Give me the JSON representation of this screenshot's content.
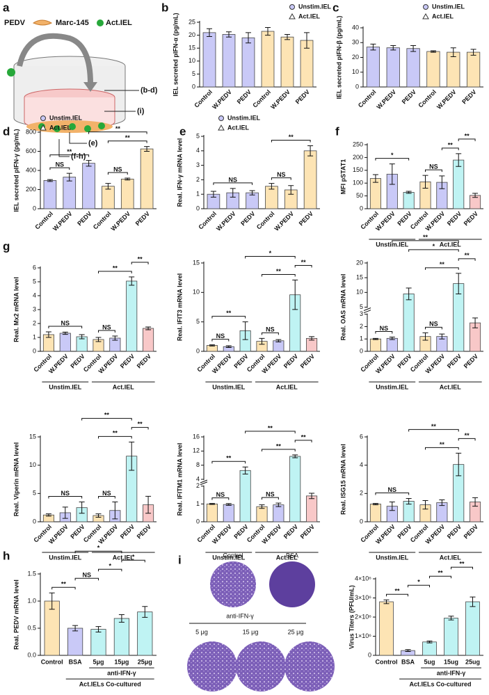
{
  "figure": {
    "a": {
      "letter": "a",
      "labels": [
        "PEDV",
        "Marc-145",
        "Act.IEL"
      ],
      "arrows": [
        "(b-d)",
        "(i)",
        "(e)",
        "(f-h)"
      ]
    },
    "plates": {
      "letter": "i",
      "top": [
        "Control",
        "BSA"
      ],
      "treatment": "anti-IFN-γ",
      "bottom": [
        "5 μg",
        "15 μg",
        "25 μg"
      ]
    }
  },
  "chart_data": [
    {
      "type": "bar",
      "panel": "b",
      "ylabel": "IEL secreted pIFN-α (pg/mL)",
      "legend": [
        "Unstim.IEL",
        "Act.IEL"
      ],
      "categories": [
        "Control",
        "W.PEDV",
        "PEDV",
        "Control",
        "W.PEDV",
        "PEDV"
      ],
      "values": [
        21,
        20.3,
        19,
        21.5,
        19.3,
        18
      ],
      "errors": [
        1.5,
        1,
        2,
        1.5,
        1,
        3
      ],
      "colors": [
        "#c9c9f7",
        "#c9c9f7",
        "#c9c9f7",
        "#fde4b4",
        "#fde4b4",
        "#fde4b4"
      ],
      "ylim": [
        0,
        25
      ],
      "yticks": [
        0,
        5,
        10,
        15,
        20,
        25
      ]
    },
    {
      "type": "bar",
      "panel": "c",
      "ylabel": "IEL secreted pIFN-β (pg/mL)",
      "legend": [
        "Unstim.IEL",
        "Act.IEL"
      ],
      "categories": [
        "Control",
        "W.PEDV",
        "PEDV",
        "Control",
        "W.PEDV",
        "PEDV"
      ],
      "values": [
        27,
        26.5,
        26,
        24,
        23.5,
        23.5
      ],
      "errors": [
        2,
        1.5,
        2,
        0.5,
        3,
        2
      ],
      "colors": [
        "#c9c9f7",
        "#c9c9f7",
        "#c9c9f7",
        "#fde4b4",
        "#fde4b4",
        "#fde4b4"
      ],
      "ylim": [
        0,
        40
      ],
      "yticks": [
        0,
        10,
        20,
        30,
        40
      ]
    },
    {
      "type": "bar",
      "panel": "d",
      "ylabel": "IEL secreted pIFN-γ (pg/mL)",
      "legend": [
        "Unstim.IEL",
        "Act.IEL"
      ],
      "categories": [
        "Control",
        "W.PEDV",
        "PEDV",
        "Control",
        "W.PEDV",
        "PEDV"
      ],
      "values": [
        295,
        330,
        475,
        235,
        310,
        625
      ],
      "errors": [
        10,
        40,
        30,
        30,
        10,
        25
      ],
      "colors": [
        "#c9c9f7",
        "#c9c9f7",
        "#c9c9f7",
        "#fde4b4",
        "#fde4b4",
        "#fde4b4"
      ],
      "ylim": [
        0,
        800
      ],
      "yticks": [
        0,
        200,
        400,
        600,
        800
      ],
      "comparisons": [
        {
          "from": 0,
          "to": 1,
          "label": "NS"
        },
        {
          "from": 0,
          "to": 2,
          "label": "**"
        },
        {
          "from": 3,
          "to": 4,
          "label": "NS"
        },
        {
          "from": 3,
          "to": 5,
          "label": "**"
        },
        {
          "from": 2,
          "to": 5,
          "label": "**"
        }
      ]
    },
    {
      "type": "bar",
      "panel": "e",
      "ylabel": "Real. IFN-γ mRNA level",
      "legend": [
        "Unstim.IEL",
        "Act.IEL"
      ],
      "categories": [
        "Control",
        "W.PEDV",
        "PEDV",
        "Control",
        "W.PEDV",
        "PEDV"
      ],
      "values": [
        1.0,
        1.1,
        1.1,
        1.55,
        1.3,
        4.0
      ],
      "errors": [
        0.2,
        0.3,
        0.15,
        0.2,
        0.3,
        0.35
      ],
      "colors": [
        "#c9c9f7",
        "#c9c9f7",
        "#c9c9f7",
        "#fde4b4",
        "#fde4b4",
        "#fde4b4"
      ],
      "ylim": [
        0,
        5
      ],
      "yticks": [
        0,
        1,
        2,
        3,
        4,
        5
      ],
      "comparisons": [
        {
          "from": 0,
          "to": 2,
          "label": "NS"
        },
        {
          "from": 3,
          "to": 4,
          "label": "NS"
        },
        {
          "from": 3,
          "to": 5,
          "label": "**"
        }
      ]
    },
    {
      "type": "bar",
      "panel": "f",
      "ylabel": "MFI pSTAT1",
      "categories": [
        "Control",
        "W.PEDV",
        "PEDV",
        "Control",
        "W.PEDV",
        "PEDV",
        "PEDV"
      ],
      "values": [
        118,
        135,
        64,
        105,
        103,
        190,
        52
      ],
      "errors": [
        15,
        40,
        4,
        25,
        25,
        25,
        8
      ],
      "colors": [
        "#fde4b4",
        "#c9c9f7",
        "#bff3f3",
        "#fde4b4",
        "#c9c9f7",
        "#bff3f3",
        "#f8c8c8"
      ],
      "ylim": [
        0,
        250
      ],
      "yticks": [
        0,
        50,
        100,
        150,
        200,
        250
      ],
      "comparisons": [
        {
          "from": 0,
          "to": 2,
          "label": "*"
        },
        {
          "from": 3,
          "to": 4,
          "label": "NS"
        },
        {
          "from": 4,
          "to": 5,
          "label": "**"
        },
        {
          "from": 5,
          "to": 6,
          "label": "**"
        }
      ],
      "group_rows": [
        [
          {
            "label": "Unstim.IEL",
            "from": 0,
            "to": 2
          },
          {
            "label": "Act.IEL",
            "from": 3,
            "to": 6
          }
        ]
      ]
    },
    {
      "type": "bar",
      "panel": "g",
      "ylabel": "Real. Mx2 mRNA level",
      "categories": [
        "Control",
        "W.PEDV",
        "PEDV",
        "Control",
        "W.PEDV",
        "PEDV",
        "PEDV"
      ],
      "values": [
        1.2,
        1.3,
        1.05,
        0.85,
        0.95,
        5.05,
        1.65
      ],
      "errors": [
        0.2,
        0.08,
        0.15,
        0.15,
        0.15,
        0.3,
        0.1
      ],
      "colors": [
        "#fde4b4",
        "#c9c9f7",
        "#bff3f3",
        "#fde4b4",
        "#c9c9f7",
        "#bff3f3",
        "#f8c8c8"
      ],
      "ylim": [
        0,
        6
      ],
      "yticks": [
        0,
        1,
        2,
        3,
        4,
        5,
        6
      ],
      "comparisons": [
        {
          "from": 0,
          "to": 2,
          "label": "NS"
        },
        {
          "from": 3,
          "to": 4,
          "label": "NS"
        },
        {
          "from": 3,
          "to": 5,
          "label": "**"
        },
        {
          "from": 5,
          "to": 6,
          "label": "**"
        }
      ],
      "group_rows": [
        [
          {
            "label": "Unstim.IEL",
            "from": 0,
            "to": 2
          },
          {
            "label": "Act.IEL",
            "from": 3,
            "to": 6
          }
        ]
      ]
    },
    {
      "type": "bar",
      "ylabel": "Real. IFIT3 mRNA level",
      "categories": [
        "Control",
        "W.PEDV",
        "PEDV",
        "Control",
        "W.PEDV",
        "PEDV",
        "PEDV"
      ],
      "values": [
        1.0,
        0.8,
        3.5,
        1.7,
        1.8,
        9.6,
        2.2
      ],
      "errors": [
        0.1,
        0.15,
        1.5,
        0.5,
        0.2,
        2.5,
        0.3
      ],
      "colors": [
        "#fde4b4",
        "#c9c9f7",
        "#bff3f3",
        "#fde4b4",
        "#c9c9f7",
        "#bff3f3",
        "#f8c8c8"
      ],
      "ylim": [
        0,
        15
      ],
      "yticks": [
        0,
        5,
        10,
        15
      ],
      "comparisons": [
        {
          "from": 0,
          "to": 1,
          "label": "NS"
        },
        {
          "from": 0,
          "to": 2,
          "label": "**"
        },
        {
          "from": 3,
          "to": 4,
          "label": "NS"
        },
        {
          "from": 3,
          "to": 5,
          "label": "**"
        },
        {
          "from": 5,
          "to": 6,
          "label": "**"
        },
        {
          "from": 2,
          "to": 5,
          "label": "*"
        }
      ],
      "group_rows": [
        [
          {
            "label": "Unstim.IEL",
            "from": 0,
            "to": 2
          },
          {
            "label": "Act.IEL",
            "from": 3,
            "to": 6
          }
        ]
      ]
    },
    {
      "type": "bar",
      "ylabel": "Real. OAS mRNA level",
      "categories": [
        "Control",
        "W.PEDV",
        "PEDV",
        "Control",
        "W.PEDV",
        "PEDV",
        "PEDV"
      ],
      "values": [
        1.0,
        1.05,
        9.5,
        1.2,
        1.2,
        13,
        2.3
      ],
      "errors": [
        0.05,
        0.1,
        2,
        0.3,
        0.2,
        3.5,
        0.4
      ],
      "colors": [
        "#fde4b4",
        "#c9c9f7",
        "#bff3f3",
        "#fde4b4",
        "#c9c9f7",
        "#bff3f3",
        "#f8c8c8"
      ],
      "ylim": [
        0,
        20
      ],
      "ybreak": [
        3,
        5
      ],
      "yticks": [
        0,
        1,
        2,
        3,
        5,
        10,
        15,
        20
      ],
      "comparisons": [
        {
          "from": 0,
          "to": 1,
          "label": "NS"
        },
        {
          "from": 3,
          "to": 4,
          "label": "NS"
        },
        {
          "from": 3,
          "to": 5,
          "label": "**"
        },
        {
          "from": 5,
          "to": 6,
          "label": "**"
        },
        {
          "from": 2,
          "to": 5,
          "label": "*"
        },
        {
          "from": 1,
          "to": 5,
          "label": "**"
        }
      ],
      "group_rows": [
        [
          {
            "label": "Unstim.IEL",
            "from": 0,
            "to": 2
          },
          {
            "label": "Act.IEL",
            "from": 3,
            "to": 6
          }
        ]
      ]
    },
    {
      "type": "bar",
      "ylabel": "Real. Viperin mRNA level",
      "categories": [
        "Control",
        "W.PEDV",
        "PEDV",
        "Control",
        "W.PEDV",
        "PEDV",
        "PEDV"
      ],
      "values": [
        1.2,
        1.6,
        2.5,
        1.1,
        2.0,
        11.6,
        3.0
      ],
      "errors": [
        0.2,
        1,
        1,
        0.3,
        1.5,
        2.5,
        1.5
      ],
      "colors": [
        "#fde4b4",
        "#c9c9f7",
        "#bff3f3",
        "#fde4b4",
        "#c9c9f7",
        "#bff3f3",
        "#f8c8c8"
      ],
      "ylim": [
        0,
        15
      ],
      "yticks": [
        0,
        5,
        10,
        15
      ],
      "comparisons": [
        {
          "from": 0,
          "to": 2,
          "label": "NS"
        },
        {
          "from": 3,
          "to": 4,
          "label": "NS"
        },
        {
          "from": 3,
          "to": 5,
          "label": "**"
        },
        {
          "from": 5,
          "to": 6,
          "label": "**"
        },
        {
          "from": 2,
          "to": 5,
          "label": "**"
        }
      ],
      "group_rows": [
        [
          {
            "label": "Unstim.IEL",
            "from": 0,
            "to": 2
          },
          {
            "label": "Act.IEL",
            "from": 3,
            "to": 6
          }
        ]
      ]
    },
    {
      "type": "bar",
      "ylabel": "Real. IFITM1 mRNA level",
      "categories": [
        "Control",
        "W.PEDV",
        "PEDV",
        "Control",
        "W.PEDV",
        "PEDV",
        "PEDV"
      ],
      "values": [
        1.0,
        0.97,
        6.5,
        0.85,
        0.95,
        10.5,
        1.45
      ],
      "errors": [
        0.03,
        0.05,
        1,
        0.1,
        0.1,
        0.4,
        0.15
      ],
      "colors": [
        "#fde4b4",
        "#c9c9f7",
        "#bff3f3",
        "#fde4b4",
        "#c9c9f7",
        "#bff3f3",
        "#f8c8c8"
      ],
      "ylim": [
        0,
        16
      ],
      "ybreak": [
        2,
        4
      ],
      "yticks": [
        0,
        1,
        2,
        4,
        8,
        12,
        16
      ],
      "comparisons": [
        {
          "from": 0,
          "to": 1,
          "label": "NS"
        },
        {
          "from": 0,
          "to": 2,
          "label": "**"
        },
        {
          "from": 3,
          "to": 4,
          "label": "NS"
        },
        {
          "from": 3,
          "to": 5,
          "label": "**"
        },
        {
          "from": 5,
          "to": 6,
          "label": "**"
        },
        {
          "from": 2,
          "to": 5,
          "label": "**"
        }
      ],
      "group_rows": [
        [
          {
            "label": "Unstim.IEL",
            "from": 0,
            "to": 2
          },
          {
            "label": "Act.IEL",
            "from": 3,
            "to": 6
          }
        ]
      ]
    },
    {
      "type": "bar",
      "ylabel": "Real. ISG15 mRNA level",
      "categories": [
        "Control",
        "W.PEDV",
        "PEDV",
        "Control",
        "W.PEDV",
        "PEDV",
        "PEDV"
      ],
      "values": [
        1.25,
        1.1,
        1.45,
        1.2,
        1.35,
        4.05,
        1.4
      ],
      "errors": [
        0.05,
        0.3,
        0.2,
        0.3,
        0.2,
        0.8,
        0.3
      ],
      "colors": [
        "#fde4b4",
        "#c9c9f7",
        "#bff3f3",
        "#fde4b4",
        "#c9c9f7",
        "#bff3f3",
        "#f8c8c8"
      ],
      "ylim": [
        0,
        6
      ],
      "yticks": [
        0,
        2,
        4,
        6
      ],
      "comparisons": [
        {
          "from": 0,
          "to": 2,
          "label": "NS"
        },
        {
          "from": 3,
          "to": 5,
          "label": "**"
        },
        {
          "from": 5,
          "to": 6,
          "label": "**"
        },
        {
          "from": 2,
          "to": 5,
          "label": "**"
        }
      ],
      "group_rows": [
        [
          {
            "label": "Unstim.IEL",
            "from": 0,
            "to": 2
          },
          {
            "label": "Act.IEL",
            "from": 3,
            "to": 6
          }
        ]
      ]
    },
    {
      "type": "bar",
      "panel": "h",
      "ylabel": "Real. PEDV mRNA level",
      "categories": [
        "Control",
        "BSA",
        "5μg",
        "15μg",
        "25μg"
      ],
      "values": [
        1.0,
        0.5,
        0.48,
        0.68,
        0.8
      ],
      "errors": [
        0.15,
        0.05,
        0.05,
        0.07,
        0.1
      ],
      "colors": [
        "#fde4b4",
        "#c9c9f7",
        "#bff3f3",
        "#bff3f3",
        "#bff3f3"
      ],
      "ylim": [
        0,
        1.5
      ],
      "yticks": [
        {
          "value": 0,
          "label": "0.0"
        },
        {
          "value": 0.5,
          "label": "0.5"
        },
        {
          "value": 1,
          "label": "1.0"
        },
        {
          "value": 1.5,
          "label": "1.5"
        }
      ],
      "comparisons": [
        {
          "from": 0,
          "to": 1,
          "label": "**"
        },
        {
          "from": 1,
          "to": 2,
          "label": "NS"
        },
        {
          "from": 2,
          "to": 3,
          "label": "*"
        },
        {
          "from": 3,
          "to": 4,
          "label": "*"
        },
        {
          "from": 1,
          "to": 3,
          "label": "*"
        }
      ],
      "group_rows": [
        [
          {
            "label": "anti-IFN-γ",
            "from": 2,
            "to": 4
          }
        ],
        [
          {
            "label": "Act.IELs Co-cultured",
            "from": 1,
            "to": 4
          }
        ]
      ]
    },
    {
      "type": "bar",
      "ylabel": "Virus Titers (PFU/mL)",
      "categories": [
        "Control",
        "BSA",
        "5ug",
        "15ug",
        "25ug"
      ],
      "values": [
        2800000,
        250000,
        700000,
        1950000,
        2800000
      ],
      "errors": [
        100000,
        50000,
        50000,
        100000,
        250000
      ],
      "colors": [
        "#fde4b4",
        "#c9c9f7",
        "#bff3f3",
        "#bff3f3",
        "#bff3f3"
      ],
      "ylim": [
        0,
        4000000
      ],
      "yticks": [
        0,
        {
          "value": 1000000,
          "label": "1×10⁶"
        },
        {
          "value": 2000000,
          "label": "2×10⁶"
        },
        {
          "value": 3000000,
          "label": "3×10⁶"
        },
        {
          "value": 4000000,
          "label": "4×10⁶"
        }
      ],
      "comparisons": [
        {
          "from": 0,
          "to": 1,
          "label": "**"
        },
        {
          "from": 1,
          "to": 2,
          "label": "*"
        },
        {
          "from": 2,
          "to": 3,
          "label": "**"
        },
        {
          "from": 3,
          "to": 4,
          "label": "**"
        }
      ],
      "group_rows": [
        [
          {
            "label": "anti-IFN-γ",
            "from": 2,
            "to": 4
          }
        ],
        [
          {
            "label": "Act.IELs Co-cultured",
            "from": 1,
            "to": 4
          }
        ]
      ]
    }
  ]
}
